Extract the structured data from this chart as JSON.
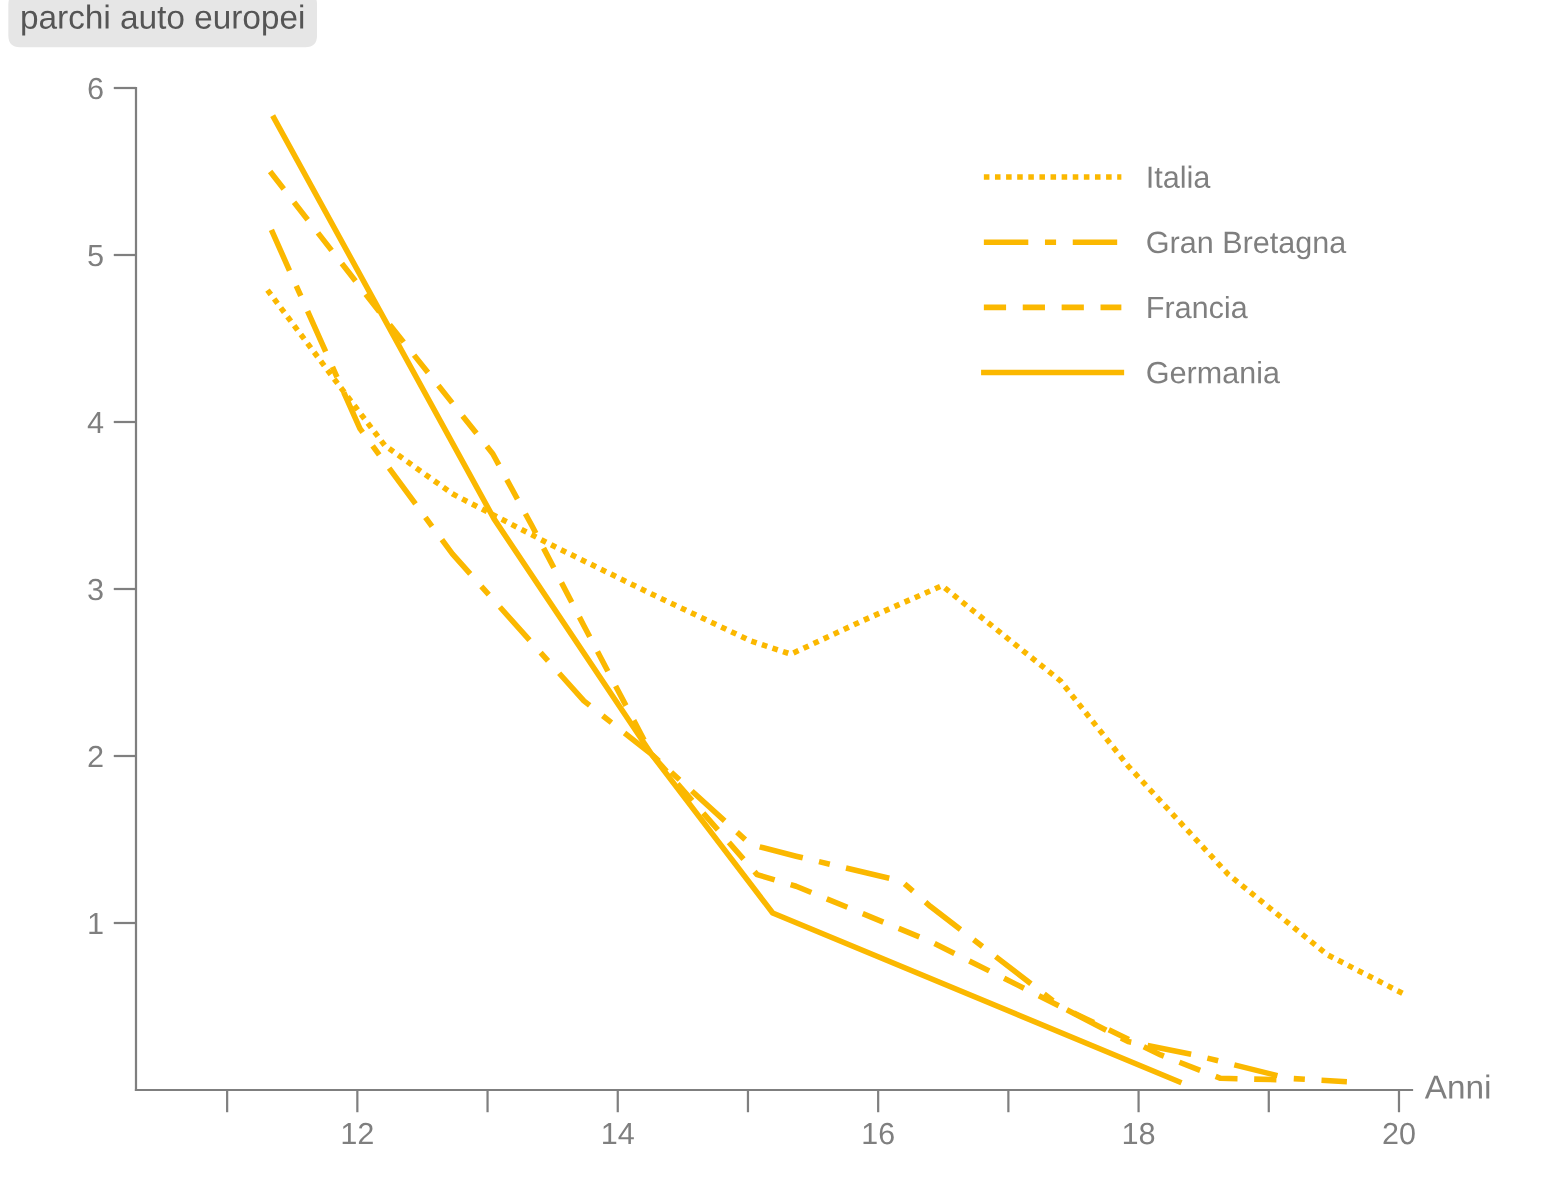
{
  "chart_data": {
    "type": "line",
    "title": "parchi auto europei",
    "xlabel": "Anni",
    "xlim": [
      10.3,
      20.1
    ],
    "ylim": [
      0,
      6
    ],
    "xticks": [
      {
        "value": 11,
        "label": null
      },
      12,
      {
        "value": 13,
        "label": null
      },
      14,
      {
        "value": 15,
        "label": null
      },
      16,
      {
        "value": 17,
        "label": null
      },
      18,
      {
        "value": 19,
        "label": null
      },
      20
    ],
    "yticks": [
      1,
      2,
      3,
      4,
      5,
      6
    ],
    "grid": false,
    "legend": "top right",
    "marker": "none",
    "series": [
      {
        "name": "Italia",
        "color": "#fbb800",
        "line_style": "dotted",
        "x": [
          11.31,
          11.82,
          12.21,
          12.73,
          13.5,
          14.26,
          15.02,
          15.33,
          15.88,
          16.49,
          17.4,
          17.92,
          18.69,
          19.45,
          20.05
        ],
        "values": [
          4.79,
          4.26,
          3.86,
          3.57,
          3.26,
          2.97,
          2.69,
          2.61,
          2.81,
          3.02,
          2.45,
          1.94,
          1.29,
          0.81,
          0.57
        ]
      },
      {
        "name": "Gran Bretagna",
        "color": "#fbb800",
        "line_style": "dashdot",
        "x": [
          11.34,
          12.02,
          12.73,
          13.74,
          14.26,
          15.02,
          15.37,
          16.18,
          16.4,
          17.4,
          17.92,
          18.43,
          19.15,
          19.6
        ],
        "values": [
          5.15,
          3.96,
          3.21,
          2.33,
          2.01,
          1.47,
          1.4,
          1.25,
          1.1,
          0.5,
          0.29,
          0.21,
          0.07,
          0.05
        ]
      },
      {
        "name": "Francia",
        "color": "#fbb800",
        "line_style": "dashed",
        "x": [
          11.33,
          12.21,
          12.58,
          13.04,
          13.34,
          13.74,
          14.26,
          15.07,
          15.37,
          16.4,
          17.4,
          18.17,
          18.63,
          19.15
        ],
        "values": [
          5.5,
          4.62,
          4.26,
          3.81,
          3.38,
          2.78,
          2.01,
          1.29,
          1.22,
          0.89,
          0.5,
          0.21,
          0.07,
          0.06
        ]
      },
      {
        "name": "Germania",
        "color": "#fbb800",
        "line_style": "solid",
        "x": [
          11.36,
          13.05,
          14.26,
          15.19,
          18.31
        ],
        "values": [
          5.82,
          3.42,
          2.01,
          1.06,
          0.05
        ]
      }
    ]
  }
}
